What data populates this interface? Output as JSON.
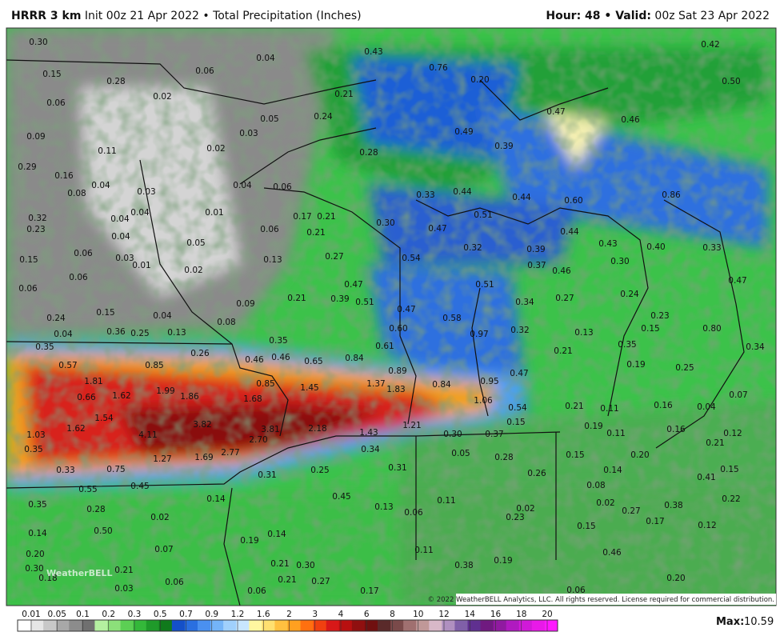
{
  "header": {
    "model": "HRRR 3 km",
    "title": "Init 00z 21 Apr 2022 • Total Precipitation (Inches)",
    "valid_bold": "Hour: 48 • Valid:",
    "valid": "00z Sat 23 Apr 2022"
  },
  "map": {
    "labels": [
      "0.30",
      "0.15",
      "0.28",
      "0.02",
      "0.06",
      "0.06",
      "0.04",
      "0.43",
      "0.76",
      "0.20",
      "0.42",
      "0.50",
      "0.21",
      "0.24",
      "0.05",
      "0.03",
      "0.02",
      "0.11",
      "0.09",
      "0.29",
      "0.16",
      "0.08",
      "0.04",
      "0.03",
      "0.49",
      "0.39",
      "0.47",
      "0.46",
      "0.28",
      "0.04",
      "0.06",
      "0.33",
      "0.44",
      "0.44",
      "0.60",
      "0.86",
      "0.32",
      "0.23",
      "0.04",
      "0.04",
      "0.04",
      "0.01",
      "0.17",
      "0.21",
      "0.21",
      "0.06",
      "0.30",
      "0.47",
      "0.51",
      "0.44",
      "0.05",
      "0.03",
      "0.01",
      "0.06",
      "0.15",
      "0.13",
      "0.27",
      "0.54",
      "0.32",
      "0.39",
      "0.37",
      "0.43",
      "0.40",
      "0.33",
      "0.30",
      "0.02",
      "0.06",
      "0.06",
      "0.51",
      "0.46",
      "0.47",
      "0.47",
      "0.09",
      "0.21",
      "0.39",
      "0.51",
      "0.47",
      "0.58",
      "0.34",
      "0.27",
      "0.24",
      "0.15",
      "0.04",
      "0.08",
      "0.24",
      "0.23",
      "0.15",
      "0.80",
      "0.04",
      "0.36",
      "0.25",
      "0.13",
      "0.60",
      "0.97",
      "0.32",
      "0.13",
      "0.35",
      "0.34",
      "0.35",
      "0.26",
      "0.35",
      "0.61",
      "0.21",
      "0.46",
      "0.46",
      "0.65",
      "0.84",
      "0.57",
      "0.85",
      "0.19",
      "0.25",
      "0.89",
      "0.47",
      "1.81",
      "0.85",
      "1.45",
      "1.37",
      "1.83",
      "0.84",
      "0.95",
      "0.66",
      "1.62",
      "1.99",
      "1.86",
      "1.68",
      "1.06",
      "0.07",
      "1.54",
      "3.82",
      "3.81",
      "2.18",
      "1.62",
      "0.54",
      "0.21",
      "0.11",
      "0.16",
      "0.04",
      "1.03",
      "4.11",
      "2.70",
      "1.43",
      "1.21",
      "0.15",
      "0.19",
      "0.11",
      "0.16",
      "0.12",
      "0.35",
      "0.34",
      "0.30",
      "0.37",
      "0.21",
      "1.27",
      "1.69",
      "2.77",
      "0.05",
      "0.28",
      "0.15",
      "0.20",
      "0.33",
      "0.75",
      "0.25",
      "0.31",
      "0.31",
      "0.26",
      "0.14",
      "0.15",
      "0.41",
      "0.55",
      "0.45",
      "0.08",
      "0.14",
      "0.35",
      "0.45",
      "0.11",
      "0.13",
      "0.06",
      "0.02",
      "0.23",
      "0.02",
      "0.27",
      "0.38",
      "0.22",
      "0.28",
      "0.02",
      "0.14",
      "0.50",
      "0.14",
      "0.19",
      "0.15",
      "0.17",
      "0.12",
      "0.07",
      "0.20",
      "0.11",
      "0.19",
      "0.46",
      "0.21",
      "0.30",
      "0.21",
      "0.30",
      "0.38",
      "0.20",
      "0.06",
      "0.27",
      "0.21",
      "0.18",
      "0.03",
      "0.06",
      "0.17",
      "0.06"
    ],
    "logo": "WeatherBELL",
    "copyright": "© 2022 WeatherBELL Analytics, LLC. All rights reserved. License required for commercial distribution."
  },
  "legend": {
    "ticks": [
      "0.01",
      "0.05",
      "0.1",
      "0.2",
      "0.3",
      "0.5",
      "0.7",
      "0.9",
      "1.2",
      "1.6",
      "2",
      "3",
      "4",
      "6",
      "8",
      "10",
      "12",
      "14",
      "16",
      "18",
      "20"
    ],
    "max_label": "Max:",
    "max_value": "10.59"
  }
}
